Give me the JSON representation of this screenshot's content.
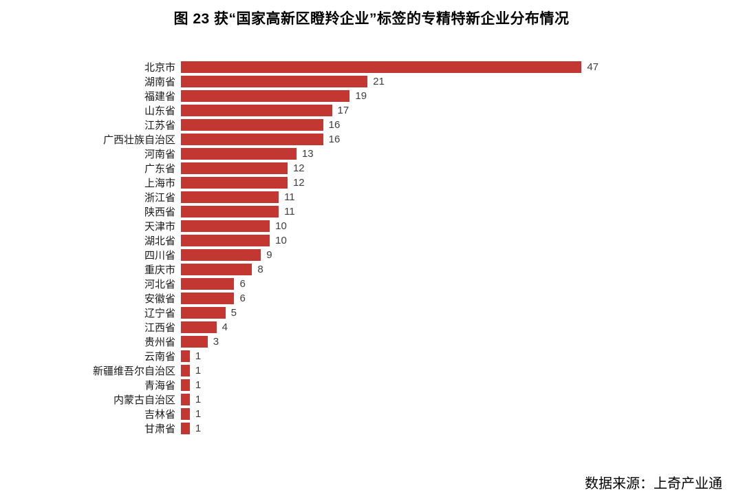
{
  "chart_data": {
    "type": "bar",
    "orientation": "horizontal",
    "title": "图 23  获“国家高新区瞪羚企业”标签的专精特新企业分布情况",
    "categories": [
      "北京市",
      "湖南省",
      "福建省",
      "山东省",
      "江苏省",
      "广西壮族自治区",
      "河南省",
      "广东省",
      "上海市",
      "浙江省",
      "陕西省",
      "天津市",
      "湖北省",
      "四川省",
      "重庆市",
      "河北省",
      "安徽省",
      "辽宁省",
      "江西省",
      "贵州省",
      "云南省",
      "新疆维吾尔自治区",
      "青海省",
      "内蒙古自治区",
      "吉林省",
      "甘肃省"
    ],
    "values": [
      47,
      21,
      19,
      17,
      16,
      16,
      13,
      12,
      12,
      11,
      11,
      10,
      10,
      9,
      8,
      6,
      6,
      5,
      4,
      3,
      1,
      1,
      1,
      1,
      1,
      1
    ],
    "xlabel": "",
    "ylabel": "",
    "xlim": [
      0,
      47
    ],
    "grid": false,
    "legend": false,
    "value_labels": true,
    "bar_color": "#c23732",
    "label_color": "#1a1a1a",
    "value_color": "#3d3d3d"
  },
  "source": "数据来源：上奇产业通"
}
